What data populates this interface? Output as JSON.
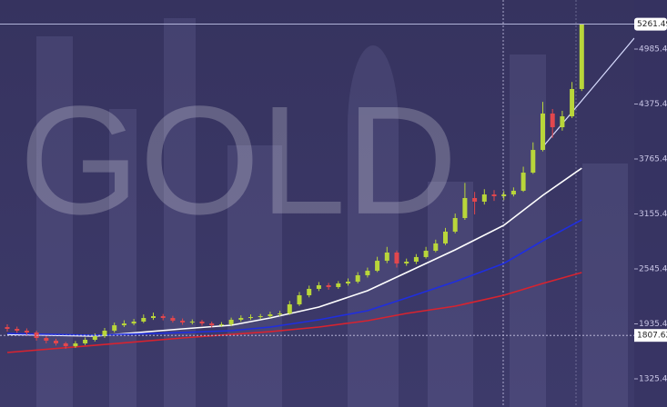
{
  "chart_data": {
    "type": "candlestick",
    "title": "GOLD",
    "ylim": [
      1012.9,
      5530
    ],
    "yticks": [
      4985.48,
      4375.48,
      3765.48,
      3155.48,
      2545.48,
      1935.48,
      1325.48
    ],
    "last_price": 5261.49,
    "crosshair_price": 1807.62,
    "up_color": "#b9d63a",
    "down_color": "#e2474d",
    "open": [
      1900,
      1880,
      1860,
      1840,
      1779,
      1749,
      1719,
      1688,
      1719,
      1759,
      1799,
      1860,
      1920,
      1940,
      1961,
      2001,
      2021,
      2001,
      1971,
      1951,
      1961,
      1940,
      1920,
      1930,
      1981,
      2001,
      2011,
      2021,
      2041,
      2051,
      2152,
      2253,
      2324,
      2364,
      2344,
      2384,
      2404,
      2475,
      2525,
      2636,
      2727,
      2606,
      2626,
      2677,
      2747,
      2828,
      2959,
      3110,
      3332,
      3292,
      3372,
      3352,
      3372,
      3413,
      3614,
      3866,
      4270,
      4118,
      4239,
      4542
    ],
    "high": [
      1930,
      1905,
      1885,
      1860,
      1800,
      1770,
      1735,
      1745,
      1785,
      1830,
      1890,
      1950,
      1975,
      1990,
      2040,
      2060,
      2045,
      2025,
      1995,
      1985,
      1980,
      1960,
      1955,
      2005,
      2030,
      2040,
      2045,
      2070,
      2080,
      2190,
      2290,
      2360,
      2400,
      2390,
      2410,
      2440,
      2510,
      2560,
      2680,
      2790,
      2750,
      2660,
      2710,
      2790,
      2870,
      3000,
      3160,
      3500,
      3400,
      3430,
      3420,
      3410,
      3450,
      3680,
      3950,
      4400,
      4320,
      4300,
      4620,
      5261.49
    ],
    "low": [
      1850,
      1835,
      1810,
      1750,
      1720,
      1695,
      1660,
      1670,
      1700,
      1740,
      1780,
      1840,
      1900,
      1920,
      1945,
      1980,
      1975,
      1950,
      1925,
      1930,
      1915,
      1895,
      1900,
      1910,
      1960,
      1980,
      1990,
      2000,
      2020,
      2035,
      2135,
      2230,
      2300,
      2315,
      2325,
      2360,
      2385,
      2450,
      2510,
      2610,
      2560,
      2580,
      2600,
      2660,
      2730,
      2810,
      2940,
      3090,
      3150,
      3260,
      3300,
      3310,
      3350,
      3400,
      3600,
      3850,
      4000,
      4080,
      4220,
      4520
    ],
    "close": [
      1880,
      1860,
      1840,
      1779,
      1749,
      1719,
      1688,
      1719,
      1759,
      1799,
      1860,
      1920,
      1940,
      1961,
      2001,
      2021,
      2001,
      1971,
      1951,
      1961,
      1940,
      1920,
      1930,
      1981,
      2001,
      2011,
      2021,
      2041,
      2051,
      2152,
      2253,
      2324,
      2364,
      2344,
      2384,
      2404,
      2475,
      2525,
      2636,
      2727,
      2606,
      2626,
      2677,
      2747,
      2828,
      2959,
      3110,
      3332,
      3292,
      3372,
      3352,
      3372,
      3413,
      3614,
      3866,
      4270,
      4118,
      4239,
      4542,
      5261.49
    ],
    "series": [
      {
        "color": "#ffffff",
        "x": [
          0,
          9,
          18,
          23,
          27,
          32,
          37,
          41,
          46,
          51,
          55,
          59
        ],
        "values": [
          1819,
          1799,
          1880,
          1920,
          2001,
          2122,
          2303,
          2505,
          2757,
          3029,
          3362,
          3664
        ]
      },
      {
        "color": "#1f2ee0",
        "x": [
          0,
          9,
          18,
          23,
          27,
          32,
          37,
          41,
          46,
          51,
          55,
          59
        ],
        "values": [
          1829,
          1809,
          1839,
          1860,
          1900,
          1981,
          2082,
          2223,
          2404,
          2606,
          2858,
          3090
        ]
      },
      {
        "color": "#d8232f",
        "x": [
          0,
          9,
          18,
          23,
          27,
          32,
          37,
          41,
          46,
          51,
          55,
          59
        ],
        "values": [
          1618,
          1698,
          1779,
          1819,
          1849,
          1900,
          1971,
          2051,
          2132,
          2253,
          2384,
          2505
        ]
      }
    ]
  }
}
